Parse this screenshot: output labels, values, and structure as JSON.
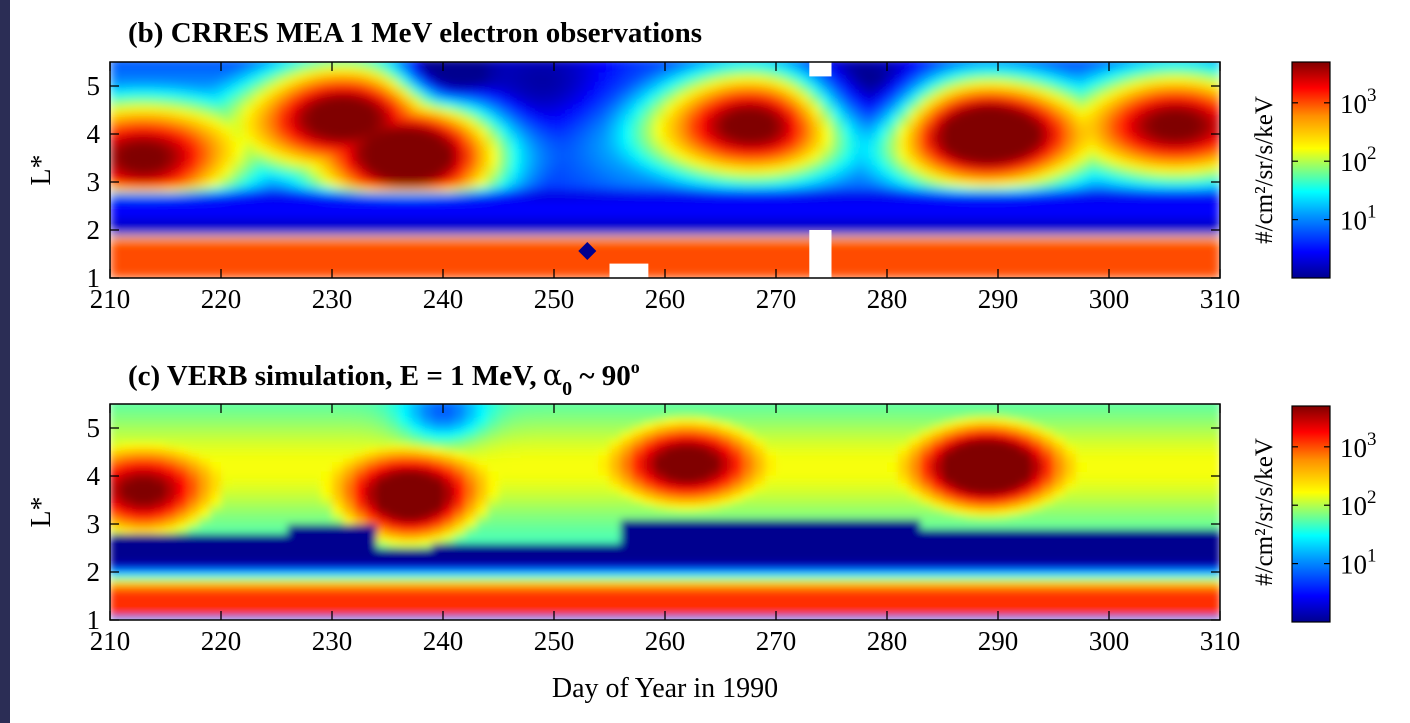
{
  "colors": {
    "background_border": "#2b2d55",
    "colormap": [
      "#00008f",
      "#0000ff",
      "#00a0ff",
      "#00ffff",
      "#80ff80",
      "#ffff00",
      "#ff9000",
      "#ff0000",
      "#800000"
    ]
  },
  "chart_data": [
    {
      "type": "heatmap",
      "title": "(b) CRRES MEA 1 MeV electron observations",
      "xlabel": "",
      "ylabel": "L*",
      "xlim": [
        210,
        310
      ],
      "ylim": [
        1,
        5.5
      ],
      "xticks": [
        "210",
        "220",
        "230",
        "240",
        "250",
        "260",
        "270",
        "280",
        "290",
        "300",
        "310"
      ],
      "yticks": [
        "1",
        "2",
        "3",
        "4",
        "5"
      ],
      "colorbar": {
        "label": "#/cm²/sr/s/keV",
        "scale": "log",
        "range": [
          1,
          5000
        ],
        "ticks": [
          {
            "base": "10",
            "exp": "1",
            "value": 10
          },
          {
            "base": "10",
            "exp": "2",
            "value": 100
          },
          {
            "base": "10",
            "exp": "3",
            "value": 1000
          }
        ]
      },
      "outer_belt_flux_peaks": [
        {
          "day": 213,
          "L": 3.3,
          "log_flux": 2.7
        },
        {
          "day": 237,
          "L": 3.4,
          "log_flux": 3.2
        },
        {
          "day": 231,
          "L": 4.5,
          "log_flux": 2.8
        },
        {
          "day": 268,
          "L": 4.3,
          "log_flux": 2.6
        },
        {
          "day": 289,
          "L": 4.0,
          "log_flux": 3.1
        },
        {
          "day": 306,
          "L": 4.3,
          "log_flux": 2.5
        }
      ],
      "inner_belt_L": [
        1.1,
        1.75
      ],
      "data_gap_days": [
        273,
        275
      ]
    },
    {
      "type": "heatmap",
      "title": "(c) VERB simulation, E = 1 MeV, α₀ ~ 90°",
      "title_parts": {
        "pre": "(c) VERB simulation, E = 1 MeV,",
        "alpha": "α",
        "sub": "0",
        "mid": " ~ 90",
        "sup": "o"
      },
      "xlabel": "Day of Year in 1990",
      "ylabel": "L*",
      "xlim": [
        210,
        310
      ],
      "ylim": [
        1,
        5.5
      ],
      "xticks": [
        "210",
        "220",
        "230",
        "240",
        "250",
        "260",
        "270",
        "280",
        "290",
        "300",
        "310"
      ],
      "yticks": [
        "1",
        "2",
        "3",
        "4",
        "5"
      ],
      "colorbar": {
        "label": "#/cm²/sr/s/keV",
        "scale": "log",
        "range": [
          1,
          5000
        ],
        "ticks": [
          {
            "base": "10",
            "exp": "1",
            "value": 10
          },
          {
            "base": "10",
            "exp": "2",
            "value": 100
          },
          {
            "base": "10",
            "exp": "3",
            "value": 1000
          }
        ]
      },
      "outer_belt_flux_peaks": [
        {
          "day": 213,
          "L": 3.5,
          "log_flux": 2.6
        },
        {
          "day": 237,
          "L": 3.4,
          "log_flux": 3.1
        },
        {
          "day": 262,
          "L": 4.3,
          "log_flux": 2.5
        },
        {
          "day": 289,
          "L": 4.2,
          "log_flux": 3.0
        }
      ],
      "slot_region_L": [
        2.2,
        3.0
      ],
      "inner_belt_L": [
        1.1,
        1.8
      ]
    }
  ]
}
